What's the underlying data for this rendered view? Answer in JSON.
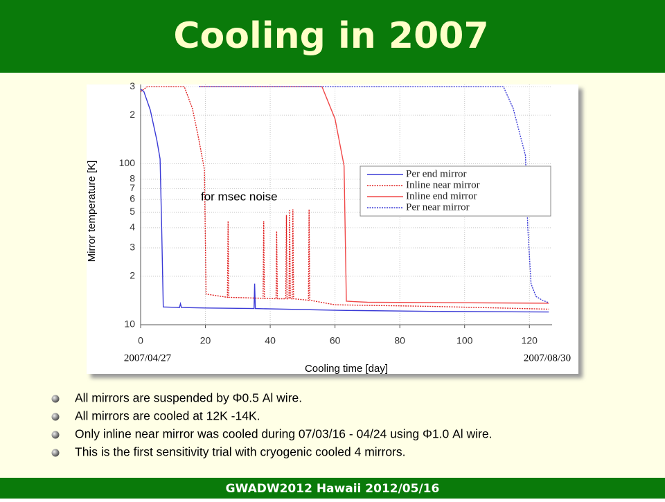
{
  "title": "Cooling in 2007",
  "chart_data": {
    "type": "line",
    "ylabel": "Mirror temperature [K]",
    "xlabel": "Cooling time [day]",
    "annotations": [
      "for msec noise",
      "2007/04/27",
      "2007/08/30"
    ],
    "xlim": [
      0,
      127
    ],
    "xticks": [
      0,
      20,
      40,
      60,
      80,
      100,
      120
    ],
    "ylim": [
      10,
      310
    ],
    "log_y": true,
    "yticks": [
      10,
      {
        "value": 20,
        "label": "2"
      },
      {
        "value": 30,
        "label": "3"
      },
      {
        "value": 40,
        "label": "4"
      },
      {
        "value": 50,
        "label": "5"
      },
      {
        "value": 60,
        "label": "6"
      },
      {
        "value": 70,
        "label": "7"
      },
      {
        "value": 80,
        "label": "8"
      },
      100,
      {
        "value": 200,
        "label": "2"
      },
      {
        "value": 300,
        "label": "3"
      }
    ],
    "grid": true,
    "legend": "upper right",
    "series": [
      {
        "name": "Per end mirror",
        "color": "#3a3ad6",
        "style": "solid",
        "x": [
          0,
          1,
          3,
          5,
          6,
          6.5,
          7,
          12,
          12.3,
          12.6,
          20,
          35,
          35.2,
          35.4,
          60,
          90,
          126
        ],
        "values": [
          290,
          280,
          215,
          140,
          107,
          40,
          12.9,
          12.8,
          13.5,
          12.8,
          12.7,
          12.6,
          18,
          12.6,
          12.3,
          12.1,
          12
        ]
      },
      {
        "name": "Inline near mirror",
        "color": "#e02222",
        "style": "dotted",
        "x": [
          0,
          2,
          13.5,
          16,
          18,
          19.7,
          20.2,
          26.8,
          27,
          27.2,
          37.8,
          38,
          38.2,
          41.8,
          42,
          42.2,
          44.8,
          45,
          45.2,
          45.8,
          46,
          46.2,
          46.8,
          47,
          47.2,
          51.8,
          52,
          52.2,
          60,
          90,
          126
        ],
        "values": [
          280,
          300,
          300,
          220,
          140,
          92,
          15.5,
          14.8,
          44,
          14.8,
          14.6,
          44,
          14.6,
          14.5,
          38,
          14.5,
          14.5,
          48,
          14.5,
          14.5,
          52,
          14.5,
          14.5,
          52,
          14.5,
          14.2,
          52,
          14.2,
          13.3,
          13,
          12.5
        ]
      },
      {
        "name": "Inline end mirror",
        "color": "#f04848",
        "style": "solid",
        "x": [
          18,
          56,
          60,
          62.8,
          63.5,
          70,
          126
        ],
        "values": [
          300,
          300,
          190,
          97,
          14,
          13.8,
          13.6
        ]
      },
      {
        "name": "Per near mirror",
        "color": "#3a3ad6",
        "style": "dotted",
        "x": [
          18,
          112,
          115,
          118.8,
          119.5,
          120.5,
          122,
          124,
          126
        ],
        "values": [
          300,
          300,
          220,
          112,
          40,
          18,
          15,
          14.2,
          13.7
        ]
      }
    ]
  },
  "bullets": [
    "All mirrors are suspended by Φ0.5 Al wire.",
    "All mirrors are cooled at 12K -14K.",
    "Only inline near mirror was cooled during 07/03/16 - 04/24 using Φ1.0 Al wire.",
    "This is the first sensitivity trial with cryogenic cooled 4 mirrors."
  ],
  "footer": "GWADW2012 Hawaii 2012/05/16"
}
